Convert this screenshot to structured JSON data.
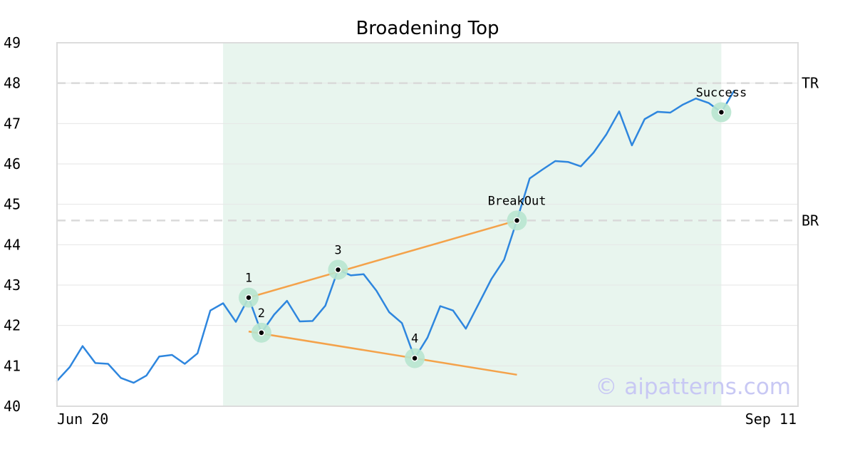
{
  "chart_data": {
    "type": "line",
    "title": "Broadening Top",
    "xlabel": "",
    "ylabel": "",
    "ylim": [
      40,
      49
    ],
    "yticks": [
      "40",
      "41",
      "42",
      "43",
      "44",
      "45",
      "46",
      "47",
      "48",
      "49"
    ],
    "x_labels": {
      "start": "Jun 20",
      "end": "Sep 11"
    },
    "grid": true,
    "x_count": 59,
    "series": [
      {
        "values": [
          40.63,
          40.97,
          41.49,
          41.07,
          41.05,
          40.7,
          40.58,
          40.76,
          41.23,
          41.27,
          41.05,
          41.31,
          42.37,
          42.55,
          42.09,
          42.69,
          41.82,
          42.27,
          42.61,
          42.1,
          42.11,
          42.49,
          43.38,
          43.24,
          43.27,
          42.86,
          42.33,
          42.06,
          41.19,
          41.7,
          42.48,
          42.37,
          41.92,
          42.53,
          43.15,
          43.63,
          44.6,
          45.64,
          45.86,
          46.07,
          46.05,
          45.94,
          46.28,
          46.73,
          47.3,
          46.46,
          47.11,
          47.29,
          47.27,
          47.47,
          47.62,
          47.51,
          47.28,
          47.81
        ]
      }
    ],
    "highlight_region": {
      "x_start": 13,
      "x_end": 52,
      "color": "#e8f5ee"
    },
    "horizontal_lines": [
      {
        "label": "TR",
        "y": 48.0
      },
      {
        "label": "BR",
        "y": 44.6
      }
    ],
    "trendlines": [
      {
        "from": [
          15,
          42.69
        ],
        "to": [
          36,
          44.6
        ],
        "color": "#f4a24a"
      },
      {
        "from": [
          15,
          41.85
        ],
        "to": [
          36,
          40.78
        ],
        "color": "#f4a24a"
      }
    ],
    "points": [
      {
        "label": "1",
        "x": 15,
        "y": 42.69
      },
      {
        "label": "2",
        "x": 16,
        "y": 41.82
      },
      {
        "label": "3",
        "x": 22,
        "y": 43.38
      },
      {
        "label": "4",
        "x": 28,
        "y": 41.19
      },
      {
        "label": "BreakOut",
        "x": 36,
        "y": 44.6
      },
      {
        "label": "Success",
        "x": 52,
        "y": 47.28
      }
    ],
    "colors": {
      "line": "#2e86de",
      "trend": "#f4a24a",
      "marker_halo": "#b8e6cf",
      "grid": "#e6e6e6",
      "hline": "#d9d9d9"
    },
    "watermark": "© aipatterns.com"
  }
}
